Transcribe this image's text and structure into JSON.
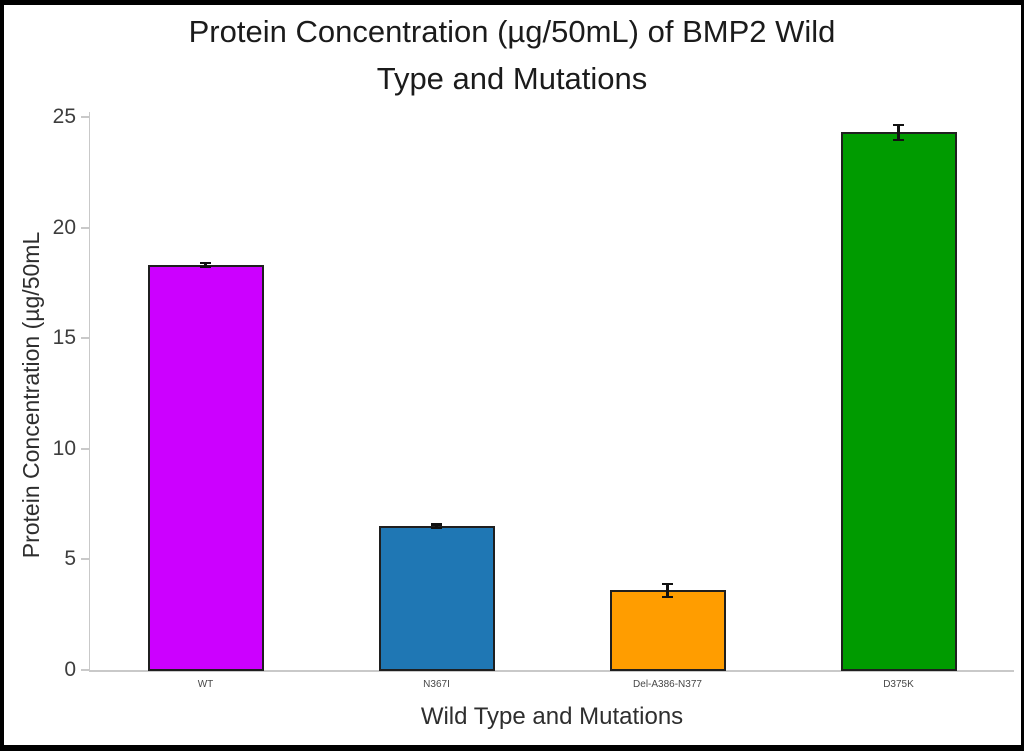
{
  "frame": {
    "background": "#ffffff",
    "edge_color": "#000000"
  },
  "chart_data": {
    "type": "bar",
    "title": "Protein Concentration (µg/50mL) of BMP2 Wild Type and Mutations",
    "title_lines": [
      "Protein Concentration (µg/50mL) of BMP2 Wild",
      "Type and Mutations"
    ],
    "xlabel": "Wild Type and Mutations",
    "ylabel": "Protein Concentration (µg/50mL",
    "categories": [
      "WT",
      "N367I",
      "Del-A386-N377",
      "D375K"
    ],
    "values": [
      18.3,
      6.5,
      3.6,
      24.3
    ],
    "errors": [
      0.1,
      0.1,
      0.3,
      0.35
    ],
    "bar_colors": [
      "#cc00ff",
      "#1f77b4",
      "#ff9d00",
      "#009b00"
    ],
    "bar_border_color": "#1f1f1f",
    "error_bar_color": "#111111",
    "axis_color": "#c9c9c9",
    "tick_label_color": "#3d3d3d",
    "ylim": [
      0,
      25
    ],
    "yticks": [
      0,
      5,
      10,
      15,
      20,
      25
    ],
    "grid": false,
    "legend": null
  }
}
